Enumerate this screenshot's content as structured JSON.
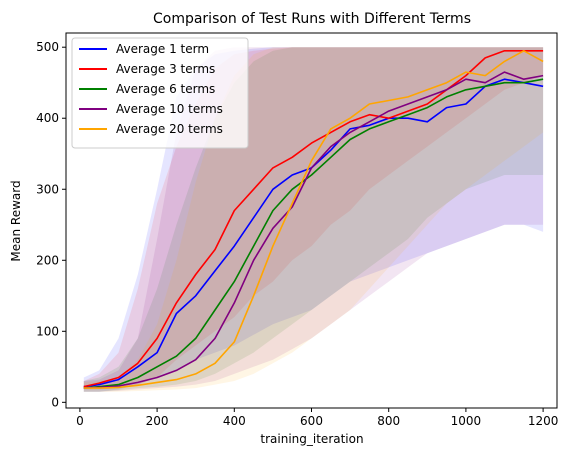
{
  "chart_data": {
    "type": "line",
    "title": "Comparison of Test Runs with Different Terms",
    "xlabel": "training_iteration",
    "ylabel": "Mean Reward",
    "xlim": [
      -36,
      1236
    ],
    "ylim": [
      -8,
      520
    ],
    "xticks": [
      0,
      200,
      400,
      600,
      800,
      1000,
      1200
    ],
    "yticks": [
      0,
      100,
      200,
      300,
      400,
      500
    ],
    "grid": false,
    "legend_position": "top-left",
    "series": [
      {
        "name": "Average 1 term",
        "color": "#0000ff",
        "x": [
          10,
          50,
          100,
          150,
          200,
          250,
          300,
          350,
          400,
          450,
          500,
          550,
          600,
          650,
          700,
          750,
          800,
          850,
          900,
          950,
          1000,
          1050,
          1100,
          1150,
          1200
        ],
        "mean": [
          22,
          25,
          32,
          50,
          70,
          125,
          150,
          185,
          220,
          260,
          300,
          320,
          330,
          355,
          385,
          390,
          400,
          400,
          395,
          415,
          420,
          445,
          455,
          450,
          445
        ],
        "lower": [
          15,
          15,
          18,
          25,
          35,
          45,
          60,
          70,
          80,
          95,
          110,
          120,
          130,
          150,
          170,
          180,
          190,
          200,
          210,
          220,
          230,
          240,
          250,
          250,
          240
        ],
        "upper": [
          35,
          45,
          90,
          180,
          300,
          430,
          470,
          490,
          495,
          498,
          500,
          500,
          500,
          500,
          500,
          500,
          500,
          500,
          500,
          500,
          500,
          500,
          500,
          500,
          500
        ]
      },
      {
        "name": "Average 3 terms",
        "color": "#ff0000",
        "x": [
          10,
          50,
          100,
          150,
          200,
          250,
          300,
          350,
          400,
          450,
          500,
          550,
          600,
          650,
          700,
          750,
          800,
          850,
          900,
          950,
          1000,
          1050,
          1100,
          1150,
          1200
        ],
        "mean": [
          22,
          27,
          35,
          55,
          90,
          140,
          180,
          215,
          270,
          300,
          330,
          345,
          365,
          380,
          395,
          405,
          400,
          410,
          420,
          440,
          460,
          485,
          495,
          495,
          495
        ],
        "lower": [
          18,
          18,
          20,
          25,
          35,
          60,
          80,
          100,
          120,
          150,
          170,
          200,
          220,
          250,
          270,
          300,
          320,
          340,
          360,
          380,
          400,
          420,
          440,
          450,
          460
        ],
        "upper": [
          30,
          40,
          70,
          160,
          280,
          360,
          420,
          470,
          490,
          495,
          498,
          500,
          500,
          500,
          500,
          500,
          500,
          500,
          500,
          500,
          500,
          500,
          500,
          500,
          500
        ]
      },
      {
        "name": "Average 6 terms",
        "color": "#008000",
        "x": [
          10,
          50,
          100,
          150,
          200,
          250,
          300,
          350,
          400,
          450,
          500,
          550,
          600,
          650,
          700,
          750,
          800,
          850,
          900,
          950,
          1000,
          1050,
          1100,
          1150,
          1200
        ],
        "mean": [
          20,
          22,
          25,
          35,
          50,
          65,
          90,
          130,
          170,
          220,
          270,
          300,
          320,
          345,
          370,
          385,
          395,
          405,
          415,
          430,
          440,
          445,
          450,
          450,
          455
        ],
        "lower": [
          15,
          15,
          17,
          20,
          22,
          25,
          30,
          40,
          55,
          70,
          90,
          110,
          130,
          150,
          170,
          190,
          210,
          230,
          260,
          280,
          300,
          310,
          320,
          320,
          320
        ],
        "upper": [
          30,
          35,
          50,
          90,
          160,
          250,
          330,
          400,
          450,
          480,
          495,
          500,
          500,
          500,
          500,
          500,
          500,
          500,
          500,
          500,
          500,
          500,
          500,
          500,
          500
        ]
      },
      {
        "name": "Average 10 terms",
        "color": "#800080",
        "x": [
          10,
          50,
          100,
          150,
          200,
          250,
          300,
          350,
          400,
          450,
          500,
          550,
          600,
          650,
          700,
          750,
          800,
          850,
          900,
          950,
          1000,
          1050,
          1100,
          1150,
          1200
        ],
        "mean": [
          20,
          21,
          23,
          28,
          35,
          45,
          60,
          90,
          140,
          200,
          245,
          275,
          330,
          360,
          380,
          395,
          410,
          420,
          430,
          440,
          455,
          450,
          465,
          455,
          460
        ],
        "lower": [
          15,
          15,
          16,
          18,
          20,
          22,
          25,
          30,
          40,
          50,
          60,
          75,
          90,
          110,
          130,
          150,
          170,
          190,
          210,
          220,
          230,
          240,
          250,
          250,
          250
        ],
        "upper": [
          30,
          32,
          45,
          90,
          230,
          380,
          470,
          495,
          500,
          500,
          500,
          500,
          500,
          500,
          500,
          500,
          500,
          500,
          500,
          500,
          500,
          500,
          500,
          500,
          500
        ]
      },
      {
        "name": "Average 20 terms",
        "color": "#ffa500",
        "x": [
          10,
          50,
          100,
          150,
          200,
          250,
          300,
          350,
          400,
          450,
          500,
          550,
          600,
          650,
          700,
          750,
          800,
          850,
          900,
          950,
          1000,
          1050,
          1100,
          1150,
          1200
        ],
        "mean": [
          20,
          20,
          21,
          24,
          28,
          32,
          40,
          55,
          85,
          150,
          220,
          280,
          340,
          385,
          400,
          420,
          425,
          430,
          440,
          450,
          465,
          460,
          480,
          495,
          480
        ],
        "lower": [
          15,
          15,
          15,
          16,
          17,
          18,
          20,
          25,
          30,
          40,
          55,
          70,
          90,
          110,
          130,
          160,
          190,
          220,
          250,
          280,
          300,
          320,
          340,
          360,
          380
        ],
        "upper": [
          28,
          30,
          35,
          60,
          110,
          200,
          310,
          400,
          460,
          490,
          500,
          500,
          500,
          500,
          500,
          500,
          500,
          500,
          500,
          500,
          500,
          500,
          500,
          500,
          500
        ]
      }
    ]
  }
}
